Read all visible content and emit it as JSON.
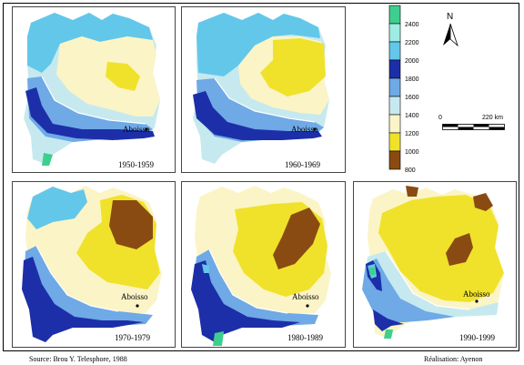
{
  "colors": {
    "c2400": "#3ecf8e",
    "c2200": "#9fece4",
    "c2000": "#63c7ea",
    "c1800": "#1c2fa8",
    "c1600": "#6fa9e6",
    "c1400": "#c6e9ef",
    "c1200": "#fbf4c6",
    "c1000": "#f0e22a",
    "c800": "#8a4b12",
    "isoline": "#ffffff"
  },
  "panels": [
    {
      "period": "1950-1959",
      "place": "Aboisso"
    },
    {
      "period": "1960-1969",
      "place": "Aboisso"
    },
    {
      "period": "1970-1979",
      "place": "Aboisso"
    },
    {
      "period": "1980-1989",
      "place": "Aboisso"
    },
    {
      "period": "1990-1999",
      "place": "Aboisso"
    }
  ],
  "legend": {
    "ticks": [
      "2400",
      "2200",
      "2000",
      "1800",
      "1600",
      "1400",
      "1200",
      "1000",
      "800"
    ]
  },
  "north_arrow": {
    "letter": "N"
  },
  "scale_bar": {
    "start": "0",
    "end": "220 km"
  },
  "footer": {
    "source": "Source: Brou Y. Telesphore, 1988",
    "credit": "Réalisation: Ayenon"
  }
}
